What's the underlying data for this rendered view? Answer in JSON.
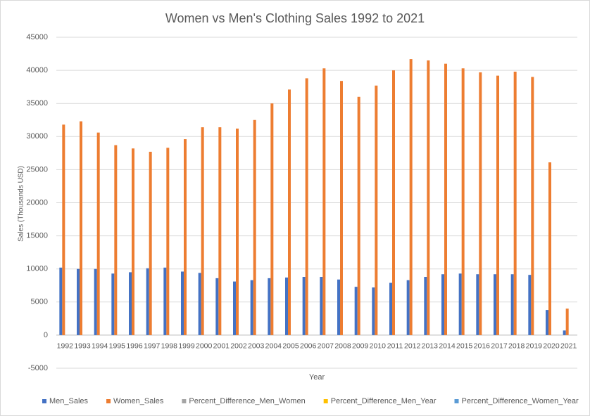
{
  "chart_data": {
    "type": "bar",
    "title": "Women vs Men's Clothing Sales 1992 to 2021",
    "x_label": "Year",
    "y_label": "Sales (Thousands USD)",
    "categories": [
      "1992",
      "1993",
      "1994",
      "1995",
      "1996",
      "1997",
      "1998",
      "1999",
      "2000",
      "2001",
      "2002",
      "2003",
      "2004",
      "2005",
      "2006",
      "2007",
      "2008",
      "2009",
      "2010",
      "2011",
      "2012",
      "2013",
      "2014",
      "2015",
      "2016",
      "2017",
      "2018",
      "2019",
      "2020",
      "2021"
    ],
    "series": [
      {
        "name": "Men_Sales",
        "color": "#4472c4",
        "values": [
          10200,
          10000,
          10000,
          9300,
          9500,
          10100,
          10200,
          9600,
          9400,
          8600,
          8100,
          8300,
          8600,
          8700,
          8800,
          8800,
          8400,
          7300,
          7200,
          7900,
          8300,
          8800,
          9200,
          9300,
          9200,
          9200,
          9200,
          9100,
          3800,
          700
        ]
      },
      {
        "name": "Women_Sales",
        "color": "#ed7d31",
        "values": [
          31800,
          32300,
          30600,
          28700,
          28200,
          27700,
          28300,
          29600,
          31400,
          31400,
          31200,
          32500,
          35000,
          37100,
          38800,
          40300,
          38400,
          36000,
          37700,
          40000,
          41700,
          41500,
          41000,
          40300,
          39700,
          39200,
          39800,
          39000,
          26100,
          4000
        ]
      },
      {
        "name": "Percent_Difference_Men_Women",
        "color": "#a5a5a5",
        "values": [
          null,
          null,
          null,
          null,
          null,
          null,
          null,
          null,
          null,
          null,
          null,
          null,
          null,
          null,
          null,
          null,
          null,
          null,
          null,
          null,
          null,
          null,
          null,
          null,
          null,
          null,
          null,
          null,
          null,
          null
        ]
      },
      {
        "name": "Percent_Difference_Men_Year",
        "color": "#ffc000",
        "values": [
          null,
          null,
          null,
          null,
          null,
          null,
          null,
          null,
          null,
          null,
          null,
          null,
          null,
          null,
          null,
          null,
          null,
          null,
          null,
          null,
          null,
          null,
          null,
          null,
          null,
          null,
          null,
          null,
          null,
          null
        ]
      },
      {
        "name": "Percent_Difference_Women_Year",
        "color": "#5b9bd5",
        "values": [
          null,
          null,
          null,
          null,
          null,
          null,
          null,
          null,
          null,
          null,
          null,
          null,
          null,
          null,
          null,
          null,
          null,
          null,
          null,
          null,
          null,
          null,
          null,
          null,
          null,
          null,
          null,
          null,
          null,
          null
        ]
      }
    ],
    "ylim": [
      -5000,
      45000
    ],
    "yticks": [
      -5000,
      0,
      5000,
      10000,
      15000,
      20000,
      25000,
      30000,
      35000,
      40000,
      45000
    ],
    "grid": true,
    "legend": "bottom"
  }
}
